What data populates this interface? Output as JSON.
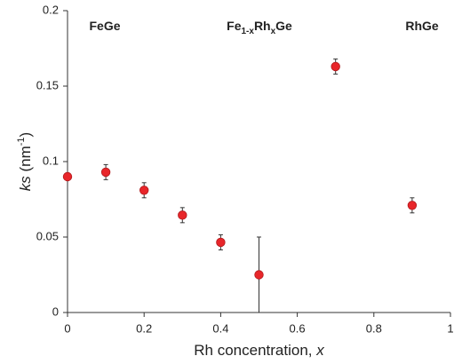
{
  "chart_data": {
    "type": "scatter",
    "x": [
      0,
      0.1,
      0.2,
      0.3,
      0.4,
      0.5,
      0.7,
      0.9
    ],
    "values": [
      0.09,
      0.093,
      0.081,
      0.0645,
      0.0465,
      0.025,
      0.163,
      0.071
    ],
    "errors": [
      0.002,
      0.005,
      0.005,
      0.005,
      0.005,
      0.025,
      0.005,
      0.005
    ],
    "color": "#e8262a",
    "xlim": [
      0,
      1
    ],
    "xticks": [
      0,
      0.2,
      0.4,
      0.6,
      0.8,
      1
    ],
    "ylim": [
      0,
      0.2
    ],
    "yticks": [
      0,
      0.05,
      0.1,
      0.15,
      0.2
    ],
    "x_label": [
      {
        "text": "Rh concentration, "
      },
      {
        "text": "x",
        "italic": true
      }
    ],
    "y_label": [
      {
        "text": "ks",
        "italic": true
      },
      {
        "text": " (nm"
      },
      {
        "text": "-1",
        "sup": true
      },
      {
        "text": ")"
      }
    ],
    "annotations": [
      [
        {
          "text": "FeGe"
        }
      ],
      [
        {
          "text": "Fe"
        },
        {
          "text": "1-x",
          "sub": true
        },
        {
          "text": "Rh"
        },
        {
          "text": "x",
          "sub": true
        },
        {
          "text": "Ge"
        }
      ],
      [
        {
          "text": "RhGe"
        }
      ]
    ]
  }
}
